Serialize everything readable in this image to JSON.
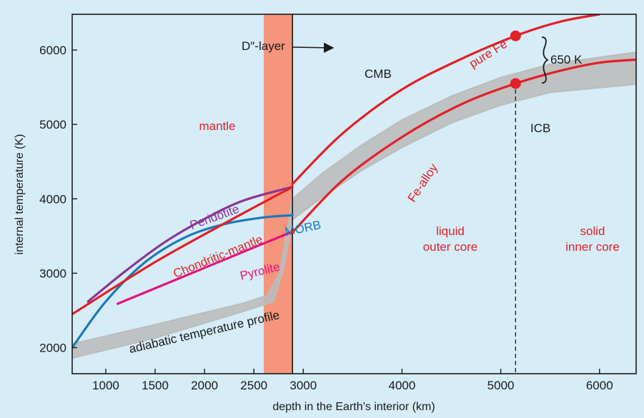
{
  "chart_data": {
    "type": "line",
    "xlabel": "depth in the Earth’s interior (km)",
    "ylabel": "internal temperature (K)",
    "xlim": [
      660,
      6371
    ],
    "ylim": [
      1650,
      6480
    ],
    "xticks": [
      1000,
      1500,
      2000,
      2500,
      3000,
      4000,
      5000,
      6000
    ],
    "yticks": [
      2000,
      3000,
      4000,
      5000,
      6000
    ],
    "grid": false,
    "colors": {
      "background": "#d6ecf6",
      "band": "#f4957c",
      "red": "#e41f26",
      "purple": "#8b3597",
      "blue": "#1a7ab8",
      "magenta": "#e5117f",
      "gray_band": "#bcbcbc",
      "axis": "#1a1a1a"
    },
    "d_layer": {
      "x_range": [
        2600,
        2891
      ]
    },
    "cmb_x": 2891,
    "icb_x": 5150,
    "series": [
      {
        "key": "peridotite",
        "name": "Peridotite",
        "color": "#8b3597",
        "x": [
          820,
          1200,
          1600,
          2000,
          2400,
          2891
        ],
        "y": [
          2620,
          3030,
          3420,
          3730,
          3980,
          4160
        ]
      },
      {
        "key": "morb",
        "name": "MORB",
        "color": "#1a7ab8",
        "x": [
          660,
          1000,
          1400,
          1800,
          2200,
          2600,
          2891
        ],
        "y": [
          2000,
          2620,
          3150,
          3480,
          3660,
          3750,
          3780
        ]
      },
      {
        "key": "chondritic",
        "name": "Chondritic-mantle",
        "color": "#e41f26",
        "x": [
          660,
          1500,
          2300,
          2891
        ],
        "y": [
          2450,
          3150,
          3740,
          4160
        ]
      },
      {
        "key": "pyrolite",
        "name": "Pyrolite",
        "color": "#e5117f",
        "x": [
          1120,
          2891
        ],
        "y": [
          2590,
          3560
        ]
      },
      {
        "key": "pure_fe",
        "name": "pure Fe",
        "color": "#e41f26",
        "x": [
          2891,
          3400,
          4000,
          4600,
          5150,
          5600,
          6000
        ],
        "y": [
          4200,
          4880,
          5470,
          5880,
          6190,
          6380,
          6480
        ]
      },
      {
        "key": "fe_alloy",
        "name": "Fe-alloy",
        "color": "#e41f26",
        "x": [
          2891,
          3400,
          4000,
          4600,
          5150,
          5600,
          6000,
          6371
        ],
        "y": [
          3550,
          4250,
          4830,
          5270,
          5550,
          5720,
          5830,
          5870
        ]
      }
    ],
    "adiabat": {
      "name": "adiabatic temperature profile",
      "upper": [
        {
          "x": 660,
          "y": 2050
        },
        {
          "x": 1500,
          "y": 2310
        },
        {
          "x": 2400,
          "y": 2600
        },
        {
          "x": 2630,
          "y": 2700
        },
        {
          "x": 2760,
          "y": 3000
        },
        {
          "x": 2891,
          "y": 4000
        },
        {
          "x": 3200,
          "y": 4350
        },
        {
          "x": 3600,
          "y": 4730
        },
        {
          "x": 4000,
          "y": 5060
        },
        {
          "x": 4500,
          "y": 5380
        },
        {
          "x": 5000,
          "y": 5630
        },
        {
          "x": 5500,
          "y": 5810
        },
        {
          "x": 6371,
          "y": 5970
        }
      ],
      "lower": [
        {
          "x": 6371,
          "y": 5540
        },
        {
          "x": 5500,
          "y": 5430
        },
        {
          "x": 5000,
          "y": 5260
        },
        {
          "x": 4500,
          "y": 5020
        },
        {
          "x": 4000,
          "y": 4690
        },
        {
          "x": 3600,
          "y": 4390
        },
        {
          "x": 3200,
          "y": 4030
        },
        {
          "x": 2891,
          "y": 3720
        },
        {
          "x": 2800,
          "y": 3050
        },
        {
          "x": 2700,
          "y": 2620
        },
        {
          "x": 2400,
          "y": 2490
        },
        {
          "x": 1500,
          "y": 2130
        },
        {
          "x": 660,
          "y": 1860
        }
      ]
    },
    "markers": [
      {
        "x": 5150,
        "y": 6190,
        "color": "#e41f26"
      },
      {
        "x": 5150,
        "y": 5550,
        "color": "#e41f26"
      }
    ],
    "annotations": {
      "d_layer": "D″-layer",
      "cmb": "CMB",
      "icb": "ICB",
      "gap": "650 K",
      "mantle": "mantle",
      "liquid_outer_core_1": "liquid",
      "liquid_outer_core_2": "outer core",
      "solid_inner_core_1": "solid",
      "solid_inner_core_2": "inner core"
    }
  }
}
